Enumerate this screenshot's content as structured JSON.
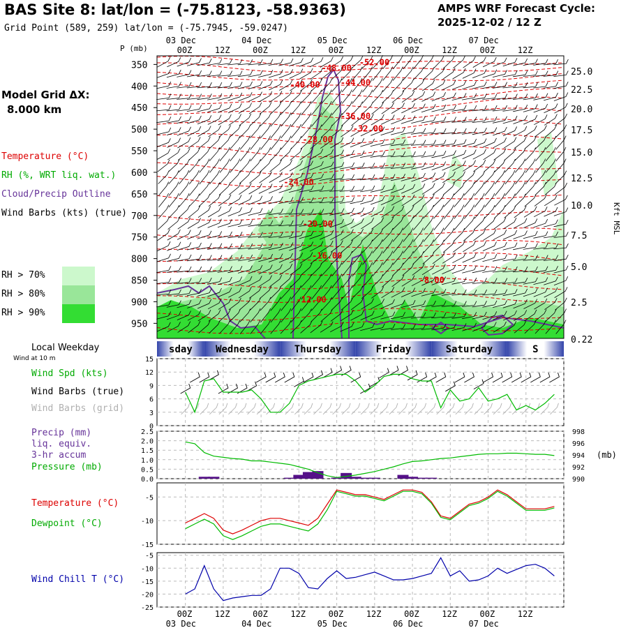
{
  "header": {
    "title": "BAS Site 8:  lat/lon = (-75.8123, -58.9363)",
    "grid_point": "Grid Point (589, 259) lat/lon = (-75.7945, -59.0247)",
    "cycle_line1": "AMPS WRF Forecast Cycle:",
    "cycle_line2": "2025-12-02 / 12  Z"
  },
  "model_grid": {
    "line1": "Model Grid ΔX:",
    "line2": "8.000 km"
  },
  "legend": {
    "temperature": "Temperature (°C)",
    "rh": "RH (%, WRT liq. wat.)",
    "cloud": "Cloud/Precip Outline",
    "wind": "Wind Barbs (kts) (true)",
    "rh70": "RH > 70%",
    "rh80": "RH > 80%",
    "rh90": "RH > 90%"
  },
  "colors": {
    "temperature": "#dd0000",
    "rh": "#00aa00",
    "cloud": "#663399",
    "rh70": "#ccf8cc",
    "rh80": "#99e699",
    "rh90": "#33dd33",
    "pressure_line": "#00bb00",
    "dewpoint": "#00bb00",
    "windchill": "#0000aa",
    "precip_bar": "#551188",
    "grid_barbs": "#b0b0b0"
  },
  "time_axis": {
    "top_labels": [
      "00Z",
      "12Z",
      "00Z",
      "12Z",
      "00Z",
      "12Z",
      "00Z",
      "12Z",
      "00Z",
      "12Z"
    ],
    "date_labels": [
      "03 Dec",
      "04 Dec",
      "05 Dec",
      "06 Dec",
      "07 Dec"
    ],
    "weekday_title": "Local Weekday",
    "weekday_sub": "Wind at 10 m",
    "weekdays": [
      "sday",
      "Wednesday",
      "Thursday",
      "Friday",
      "Saturday",
      "S"
    ]
  },
  "chart_data": [
    {
      "type": "heatmap",
      "name": "sounding",
      "ylabel": "P (mb)",
      "y2label": "Kft MSL",
      "pressure_ticks": [
        "350",
        "400",
        "450",
        "500",
        "550",
        "600",
        "650",
        "700",
        "750",
        "800",
        "850",
        "900",
        "950"
      ],
      "kft_ticks": [
        "25.0",
        "22.5",
        "20.0",
        "17.5",
        "15.0",
        "12.5",
        "10.0",
        "7.5",
        "5.0",
        "2.5",
        "0.22"
      ],
      "temperature_labels": [
        {
          "text": "-52.00",
          "hour": 60,
          "p": 345
        },
        {
          "text": "-48.00",
          "hour": 48,
          "p": 358
        },
        {
          "text": "-44.00",
          "hour": 54,
          "p": 392
        },
        {
          "text": "-40.00",
          "hour": 38,
          "p": 397
        },
        {
          "text": "-36.00",
          "hour": 54,
          "p": 470
        },
        {
          "text": "-32.00",
          "hour": 58,
          "p": 499
        },
        {
          "text": "-28.00",
          "hour": 42,
          "p": 524
        },
        {
          "text": "-24.00",
          "hour": 36,
          "p": 623
        },
        {
          "text": "-20.00",
          "hour": 42,
          "p": 720
        },
        {
          "text": "-16.00",
          "hour": 45,
          "p": 793
        },
        {
          "text": "-12.00",
          "hour": 40,
          "p": 895
        },
        {
          "text": "-8.00",
          "hour": 79,
          "p": 850
        }
      ]
    },
    {
      "type": "line",
      "name": "wind",
      "title": "Wind Spd (kts)",
      "barbs_true": "Wind Barbs (true)",
      "barbs_grid": "Wind Barbs (grid)",
      "y_ticks": [
        "0",
        "3",
        "6",
        "9",
        "12",
        "15"
      ],
      "ylim": [
        0,
        15
      ],
      "hours": [
        0,
        3,
        6,
        9,
        12,
        15,
        18,
        21,
        24,
        27,
        30,
        33,
        36,
        39,
        42,
        45,
        48,
        51,
        54,
        57,
        60,
        63,
        66,
        69,
        72,
        75,
        78,
        81,
        84,
        87,
        90,
        93,
        96,
        99,
        102,
        105,
        108,
        111,
        114,
        117
      ],
      "speed": [
        7.5,
        3,
        10,
        10.5,
        7.5,
        7.5,
        7.5,
        8,
        6,
        3,
        3,
        5,
        9,
        10,
        10.5,
        11,
        11.5,
        11.5,
        10,
        7.5,
        9,
        11,
        11.5,
        11.5,
        10.5,
        10,
        10,
        4,
        8,
        5.5,
        6,
        8.5,
        5.5,
        6,
        7,
        3.5,
        4.5,
        3.5,
        5,
        7
      ]
    },
    {
      "type": "bar",
      "name": "precip_pressure",
      "precip_title": "Precip (mm)",
      "precip_sub1": "liq. equiv.",
      "precip_sub2": "3-hr accum",
      "pressure_title": "Pressure (mb)",
      "pressure_unit": "(mb)",
      "y_ticks": [
        "0.0",
        "0.5",
        "1.0",
        "1.5",
        "2.0",
        "2.5"
      ],
      "y2_ticks": [
        "990",
        "992",
        "994",
        "996",
        "998"
      ],
      "ylim": [
        0,
        2.5
      ],
      "y2lim": [
        990,
        998
      ],
      "precip_hours": [
        6,
        9,
        33,
        36,
        39,
        42,
        48,
        51,
        54,
        57,
        60,
        69,
        72,
        75,
        78
      ],
      "precip_mm": [
        0.1,
        0.1,
        0.05,
        0.2,
        0.35,
        0.4,
        0.05,
        0.3,
        0.1,
        0.05,
        0.05,
        0.2,
        0.1,
        0.05,
        0.05
      ],
      "pressure_hours": [
        0,
        3,
        6,
        9,
        12,
        15,
        18,
        21,
        24,
        27,
        30,
        33,
        36,
        39,
        42,
        45,
        48,
        51,
        54,
        57,
        60,
        63,
        66,
        69,
        72,
        75,
        78,
        81,
        84,
        87,
        90,
        93,
        96,
        99,
        102,
        105,
        108,
        111,
        114,
        117
      ],
      "pressure_mb": [
        996.2,
        995.9,
        994.4,
        993.8,
        993.6,
        993.4,
        993.3,
        993.0,
        993.0,
        992.8,
        992.6,
        992.4,
        992.0,
        991.6,
        991.0,
        990.5,
        990.2,
        990.4,
        990.6,
        990.9,
        991.2,
        991.6,
        992.0,
        992.5,
        992.9,
        993.0,
        993.2,
        993.4,
        993.5,
        993.7,
        993.9,
        994.1,
        994.2,
        994.2,
        994.3,
        994.3,
        994.2,
        994.1,
        994.1,
        993.9
      ]
    },
    {
      "type": "line",
      "name": "temp_dew",
      "temp_title": "Temperature (°C)",
      "dew_title": "Dewpoint (°C)",
      "y_ticks": [
        "-15",
        "-10",
        "-5"
      ],
      "ylim": [
        -15,
        -2
      ],
      "hours": [
        0,
        3,
        6,
        9,
        12,
        15,
        18,
        21,
        24,
        27,
        30,
        33,
        36,
        39,
        42,
        45,
        48,
        51,
        54,
        57,
        60,
        63,
        66,
        69,
        72,
        75,
        78,
        81,
        84,
        87,
        90,
        93,
        96,
        99,
        102,
        105,
        108,
        111,
        114,
        117
      ],
      "temperature": [
        -10.5,
        -9.5,
        -8.5,
        -9.5,
        -12,
        -12.8,
        -12,
        -11,
        -10,
        -9.5,
        -9.5,
        -10,
        -10.5,
        -11,
        -9.5,
        -6.5,
        -3.5,
        -4,
        -4.5,
        -4.5,
        -5,
        -5.5,
        -4.5,
        -3.5,
        -3.5,
        -4,
        -6,
        -9,
        -9.5,
        -8,
        -6.5,
        -6,
        -5,
        -3.5,
        -4.5,
        -6,
        -7.5,
        -7.5,
        -7.5,
        -7
      ]
    },
    {
      "type": "line",
      "name": "windchill",
      "title": "Wind Chill T (°C)",
      "y_ticks": [
        "-25",
        "-20",
        "-15",
        "-10",
        "-5"
      ],
      "ylim": [
        -25,
        -4
      ],
      "hours": [
        0,
        3,
        6,
        9,
        12,
        15,
        18,
        21,
        24,
        27,
        30,
        33,
        36,
        39,
        42,
        45,
        48,
        51,
        54,
        57,
        60,
        63,
        66,
        69,
        72,
        75,
        78,
        81,
        84,
        87,
        90,
        93,
        96,
        99,
        102,
        105,
        108,
        111,
        114,
        117
      ],
      "windchill": [
        -20,
        -18,
        -9,
        -18,
        -22.5,
        -21.5,
        -21,
        -20.5,
        -20.5,
        -18,
        -10,
        -10,
        -12,
        -17.5,
        -18,
        -14,
        -11,
        -14,
        -13.5,
        -12.5,
        -11.5,
        -13,
        -14.5,
        -14.5,
        -14,
        -13,
        -12,
        -6,
        -13,
        -11,
        -15,
        -14.5,
        -13,
        -10,
        -12,
        -10.5,
        -9,
        -8.5,
        -10,
        -13
      ]
    }
  ]
}
